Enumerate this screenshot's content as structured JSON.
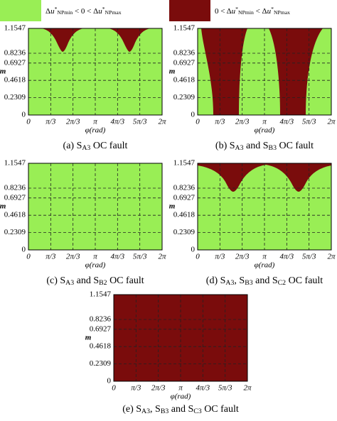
{
  "legend": {
    "items": [
      {
        "label": [
          "Δ",
          "u",
          "*",
          "NPmin",
          " < 0 < Δ",
          "u",
          "*",
          "NPmax"
        ],
        "color": "#99ee55"
      },
      {
        "label": [
          "0 < Δ",
          "u",
          "*",
          "NPmin",
          " < Δ",
          "u",
          "*",
          "NPmax"
        ],
        "color": "#7a0c0c"
      }
    ]
  },
  "axes": {
    "ylabel": "m",
    "xlabel": "φ(rad)",
    "yticks": [
      {
        "value": 1.1547,
        "label": "1.1547"
      },
      {
        "value": 0.8236,
        "label": "0.8236"
      },
      {
        "value": 0.6927,
        "label": "0.6927"
      },
      {
        "value": 0.4618,
        "label": "0.4618"
      },
      {
        "value": 0.2309,
        "label": "0.2309"
      },
      0
    ],
    "ylim": [
      0,
      1.1547
    ],
    "xticks": [
      "0",
      "π/3",
      "2π/3",
      "π",
      "4π/3",
      "5π/3",
      "2π"
    ]
  },
  "panels": [
    {
      "caption": [
        "(a) S",
        "A3",
        " OC fault"
      ]
    },
    {
      "caption": [
        "(b) S",
        "A3",
        " and S",
        "B3",
        " OC fault"
      ]
    },
    {
      "caption": [
        "(c) S",
        "A3",
        " and S",
        "B2",
        " OC fault"
      ]
    },
    {
      "caption": [
        "(d) S",
        "A3",
        ", S",
        "B3",
        " and S",
        "C2",
        " OC fault"
      ]
    },
    {
      "caption": [
        "(e) S",
        "A3",
        ", S",
        "B3",
        " and S",
        "C3",
        " OC fault"
      ]
    }
  ]
}
